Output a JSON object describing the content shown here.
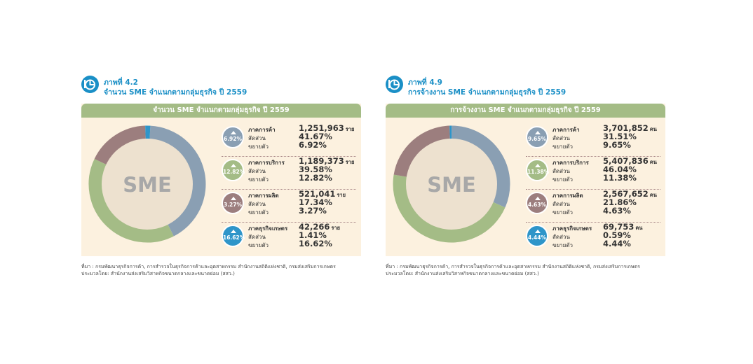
{
  "figures": [
    {
      "figure_number": "ภาพที่ 4.2",
      "figure_title": "จำนวน SME จำแนกตามกลุ่มธุรกิจ ปี 2559",
      "header": "จำนวน SME จำแนกตามกลุ่มธุรกิจ ปี 2559",
      "center_label": "SME",
      "rows": [
        {
          "label": "ภาคการค้า",
          "share_label": "สัดส่วน",
          "growth_label": "ขยายตัว",
          "value": "1,251,963",
          "unit": "ราย",
          "share": "41.67%",
          "growth": "6.92%",
          "badge": "6.92%",
          "color": "#8a9fb3"
        },
        {
          "label": "ภาคการบริการ",
          "share_label": "สัดส่วน",
          "growth_label": "ขยายตัว",
          "value": "1,189,373",
          "unit": "ราย",
          "share": "39.58%",
          "growth": "12.82%",
          "badge": "12.82%",
          "color": "#a4bc86"
        },
        {
          "label": "ภาคการผลิต",
          "share_label": "สัดส่วน",
          "growth_label": "ขยายตัว",
          "value": "521,041",
          "unit": "ราย",
          "share": "17.34%",
          "growth": "3.27%",
          "badge": "3.27%",
          "color": "#9c7e7e"
        },
        {
          "label": "ภาคธุรกิจเกษตร",
          "share_label": "สัดส่วน",
          "growth_label": "ขยายตัว",
          "value": "42,266",
          "unit": "ราย",
          "share": "1.41%",
          "growth": "16.62%",
          "badge": "16.62%",
          "color": "#2e95c9"
        }
      ],
      "source_line1": "ที่มา : กรมพัฒนาธุรกิจการค้า, การสำรวจในธุรกิจการค้าและอุตสาหกรรม สำนักงานสถิติแห่งชาติ, กรมส่งเสริมการเกษตร",
      "source_line2": "ประมวลโดย: สำนักงานส่งเสริมวิสาหกิจขนาดกลางและขนาดย่อม (สสว.)"
    },
    {
      "figure_number": "ภาพที่ 4.9",
      "figure_title": "การจ้างงาน SME จำแนกตามกลุ่มธุรกิจ ปี 2559",
      "header": "การจ้างงาน SME จำแนกตามกลุ่มธุรกิจ ปี 2559",
      "center_label": "SME",
      "rows": [
        {
          "label": "ภาคการค้า",
          "share_label": "สัดส่วน",
          "growth_label": "ขยายตัว",
          "value": "3,701,852",
          "unit": "คน",
          "share": "31.51%",
          "growth": "9.65%",
          "badge": "9.65%",
          "color": "#8a9fb3"
        },
        {
          "label": "ภาคการบริการ",
          "share_label": "สัดส่วน",
          "growth_label": "ขยายตัว",
          "value": "5,407,836",
          "unit": "คน",
          "share": "46.04%",
          "growth": "11.38%",
          "badge": "11.38%",
          "color": "#a4bc86"
        },
        {
          "label": "ภาคการผลิต",
          "share_label": "สัดส่วน",
          "growth_label": "ขยายตัว",
          "value": "2,567,652",
          "unit": "คน",
          "share": "21.86%",
          "growth": "4.63%",
          "badge": "4.63%",
          "color": "#9c7e7e"
        },
        {
          "label": "ภาคธุรกิจเกษตร",
          "share_label": "สัดส่วน",
          "growth_label": "ขยายตัว",
          "value": "69,753",
          "unit": "คน",
          "share": "0.59%",
          "growth": "4.44%",
          "badge": "4.44%",
          "color": "#2e95c9"
        }
      ],
      "source_line1": "ที่มา : กรมพัฒนาธุรกิจการค้า, การสำรวจในธุรกิจการค้าและอุตสาหกรรม สำนักงานสถิติแห่งชาติ, กรมส่งเสริมการเกษตร",
      "source_line2": "ประมวลโดย: สำนักงานส่งเสริมวิสาหกิจขนาดกลางและขนาดย่อม (สสว.)"
    }
  ],
  "colors": {
    "trade": "#8a9fb3",
    "service": "#a4bc86",
    "production": "#9c7e7e",
    "agriculture": "#2e95c9",
    "donut_inner": "#ede1cf",
    "center_text": "#a8a8a8",
    "accent": "#1a8fc6"
  },
  "icons": {
    "figure_icon": "chart-pie-icon",
    "badge_icon": "up-arrow-icon"
  },
  "chart_data": [
    {
      "type": "pie",
      "title": "จำนวน SME จำแนกตามกลุ่มธุรกิจ ปี 2559",
      "categories": [
        "ภาคการค้า",
        "ภาคการบริการ",
        "ภาคการผลิต",
        "ภาคธุรกิจเกษตร"
      ],
      "values": [
        1251963,
        1189373,
        521041,
        42266
      ],
      "shares": [
        41.67,
        39.58,
        17.34,
        1.41
      ],
      "growth": [
        6.92,
        12.82,
        3.27,
        16.62
      ],
      "unit": "ราย",
      "colors": [
        "#8a9fb3",
        "#a4bc86",
        "#9c7e7e",
        "#2e95c9"
      ]
    },
    {
      "type": "pie",
      "title": "การจ้างงาน SME จำแนกตามกลุ่มธุรกิจ ปี 2559",
      "categories": [
        "ภาคการค้า",
        "ภาคการบริการ",
        "ภาคการผลิต",
        "ภาคธุรกิจเกษตร"
      ],
      "values": [
        3701852,
        5407836,
        2567652,
        69753
      ],
      "shares": [
        31.51,
        46.04,
        21.86,
        0.59
      ],
      "growth": [
        9.65,
        11.38,
        4.63,
        4.44
      ],
      "unit": "คน",
      "colors": [
        "#8a9fb3",
        "#a4bc86",
        "#9c7e7e",
        "#2e95c9"
      ]
    }
  ]
}
